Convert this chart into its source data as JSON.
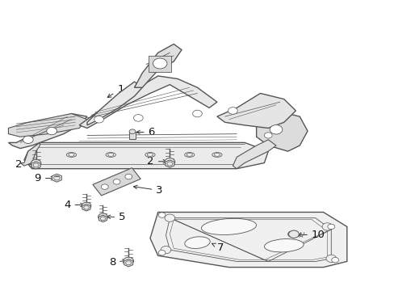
{
  "background_color": "#ffffff",
  "line_color": "#555555",
  "fig_width": 4.89,
  "fig_height": 3.6,
  "dpi": 100,
  "labels": {
    "1": [
      0.3,
      0.695,
      0.255,
      0.68
    ],
    "2L": [
      0.055,
      0.435,
      0.095,
      0.435
    ],
    "2R": [
      0.395,
      0.435,
      0.43,
      0.435
    ],
    "3": [
      0.4,
      0.345,
      0.365,
      0.36
    ],
    "4": [
      0.175,
      0.295,
      0.215,
      0.295
    ],
    "5": [
      0.295,
      0.255,
      0.27,
      0.265
    ],
    "6": [
      0.37,
      0.545,
      0.335,
      0.545
    ],
    "7": [
      0.545,
      0.155,
      0.52,
      0.175
    ],
    "8": [
      0.295,
      0.1,
      0.328,
      0.105
    ],
    "9": [
      0.1,
      0.39,
      0.14,
      0.39
    ],
    "10": [
      0.79,
      0.19,
      0.75,
      0.195
    ]
  }
}
